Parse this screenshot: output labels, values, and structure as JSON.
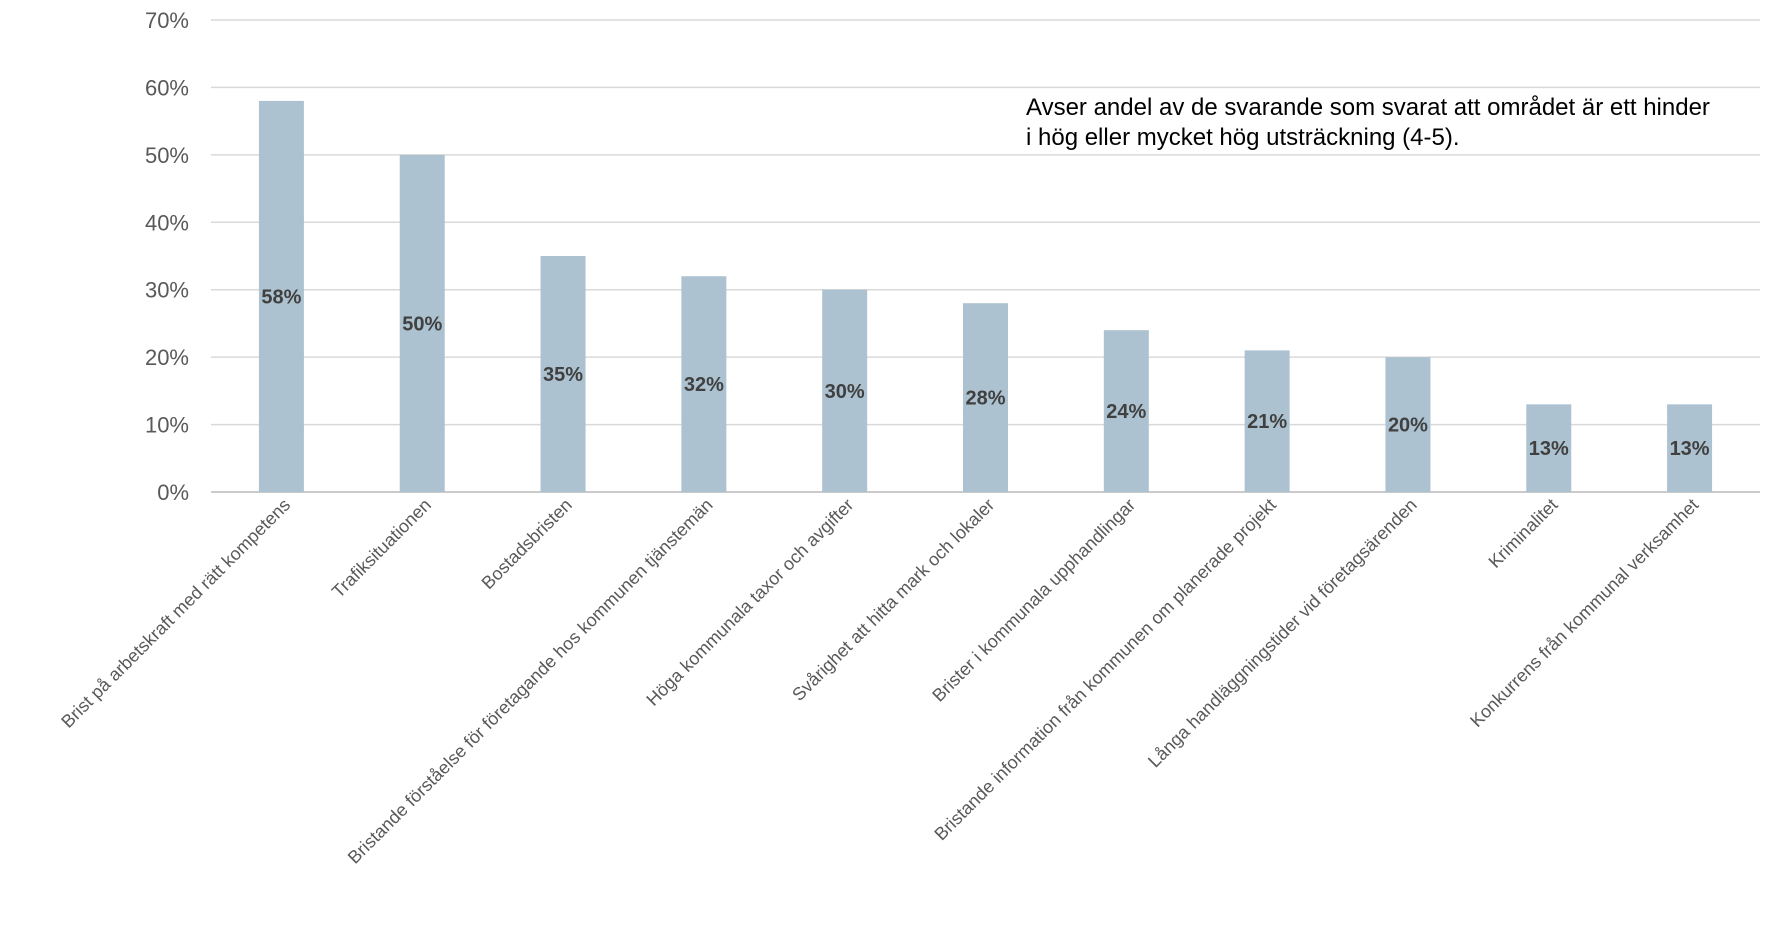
{
  "chart_data": {
    "type": "bar",
    "categories": [
      "Brist på arbetskraft med rätt kompetens",
      "Trafiksituationen",
      "Bostadsbristen",
      "Bristande förståelse för företagande hos kommunen tjänstemän",
      "Höga kommunala taxor och avgifter",
      "Svårighet att hitta mark och lokaler",
      "Brister i kommunala upphandlingar",
      "Bristande information från kommunen om planerade projekt",
      "Långa handläggningstider vid företagsärenden",
      "Kriminalitet",
      "Konkurrens från kommunal verksamhet"
    ],
    "values": [
      58,
      50,
      35,
      32,
      30,
      28,
      24,
      21,
      20,
      13,
      13
    ],
    "value_labels": [
      "58%",
      "50%",
      "35%",
      "32%",
      "30%",
      "28%",
      "24%",
      "21%",
      "20%",
      "13%",
      "13%"
    ],
    "title": "",
    "xlabel": "",
    "ylabel": "",
    "ylim": [
      0,
      70
    ],
    "yticks": [
      "0%",
      "10%",
      "20%",
      "30%",
      "40%",
      "50%",
      "60%",
      "70%"
    ],
    "grid": true,
    "bar_color": "#adc2d0",
    "annotation": {
      "line1": "Avser andel av de svarande som svarat att området är ett hinder",
      "line2": "i hög eller mycket hög utsträckning (4-5)."
    }
  }
}
